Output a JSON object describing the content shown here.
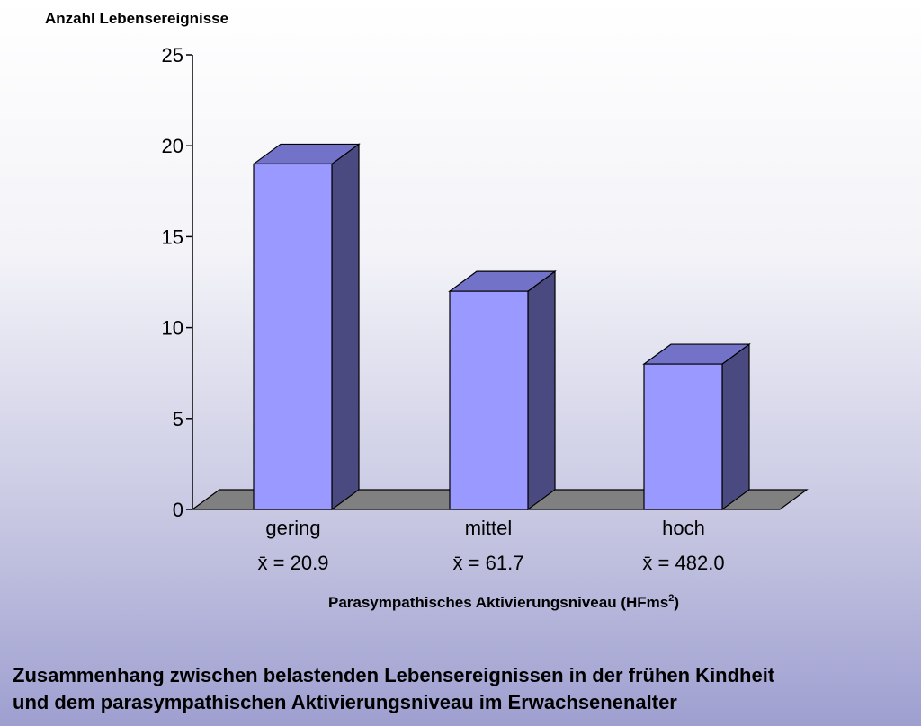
{
  "chart_data": {
    "type": "bar",
    "three_d": true,
    "categories": [
      "gering",
      "mittel",
      "hoch"
    ],
    "category_means": [
      "x̄ = 20.9",
      "x̄ = 61.7",
      "x̄ = 482.0"
    ],
    "values": [
      19,
      12,
      8
    ],
    "ylabel": "Anzahl Lebensereignisse",
    "xlabel": "Parasympathisches Aktivierungsniveau (HFms",
    "xlabel_superscript": "2",
    "xlabel_suffix": ")",
    "ylim": [
      0,
      25
    ],
    "yticks": [
      "0",
      "5",
      "10",
      "15",
      "20",
      "25"
    ],
    "grid": false,
    "legend": "none",
    "colors": {
      "bar_front": "#9999ff",
      "bar_top": "#7272c8",
      "bar_side": "#4a4a80",
      "floor": "#808080",
      "axis": "#000000"
    }
  },
  "caption": {
    "line1": "Zusammenhang zwischen belastenden Lebensereignissen in der frühen Kindheit",
    "line2": "und dem parasympathischen Aktivierungsniveau im Erwachsenenalter"
  }
}
